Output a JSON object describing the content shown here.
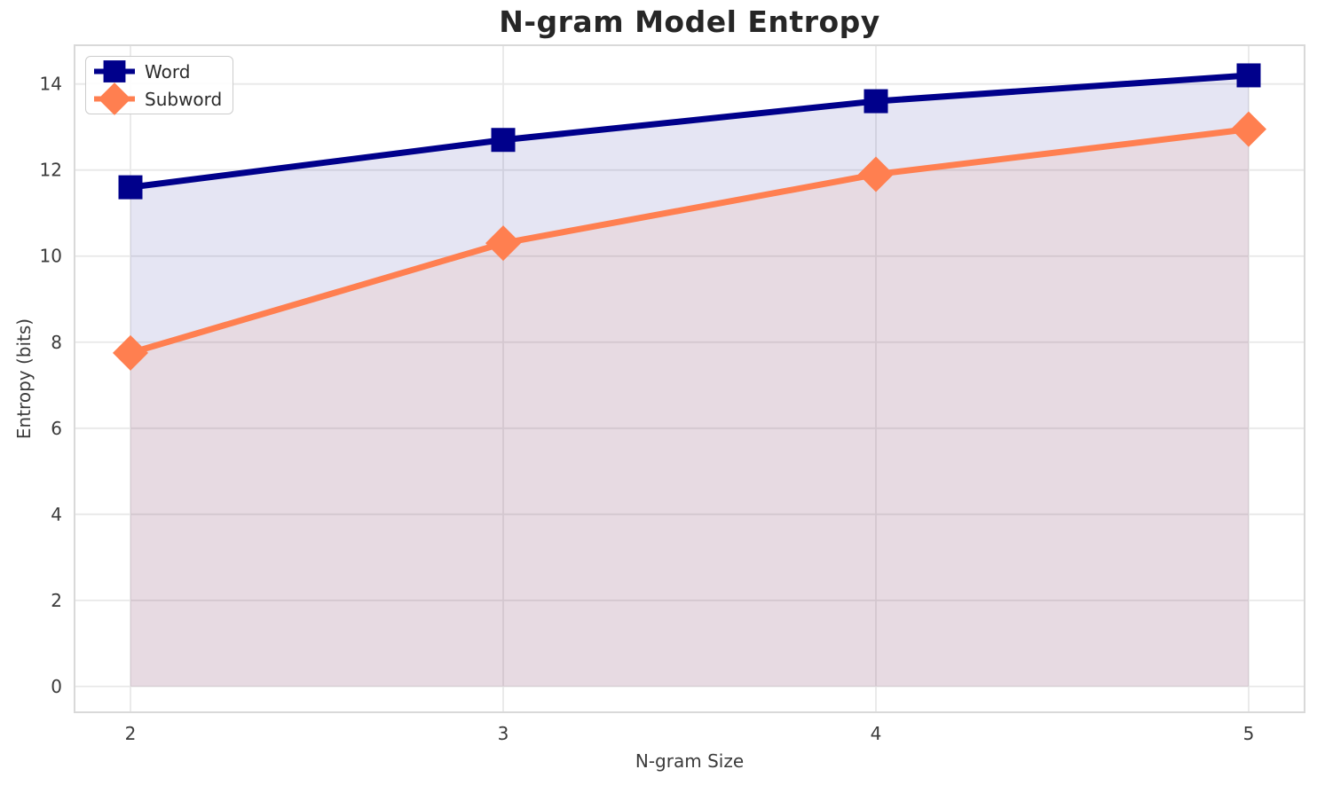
{
  "chart_data": {
    "type": "line",
    "title": "N-gram Model Entropy",
    "xlabel": "N-gram Size",
    "ylabel": "Entropy (bits)",
    "x": [
      2,
      3,
      4,
      5
    ],
    "xticks": [
      2,
      3,
      4,
      5
    ],
    "yticks": [
      0,
      2,
      4,
      6,
      8,
      10,
      12,
      14
    ],
    "xlim": [
      1.85,
      5.15
    ],
    "ylim": [
      -0.6,
      14.9
    ],
    "grid": true,
    "legend_position": "upper-left",
    "fill_baseline": 0,
    "series": [
      {
        "name": "Word",
        "color": "#00008B",
        "marker": "square",
        "fill_alpha": 0.1,
        "values": [
          11.6,
          12.7,
          13.6,
          14.2
        ]
      },
      {
        "name": "Subword",
        "color": "#FF7F50",
        "marker": "diamond",
        "fill_alpha": 0.1,
        "values": [
          7.75,
          10.3,
          11.9,
          12.95
        ]
      }
    ]
  }
}
